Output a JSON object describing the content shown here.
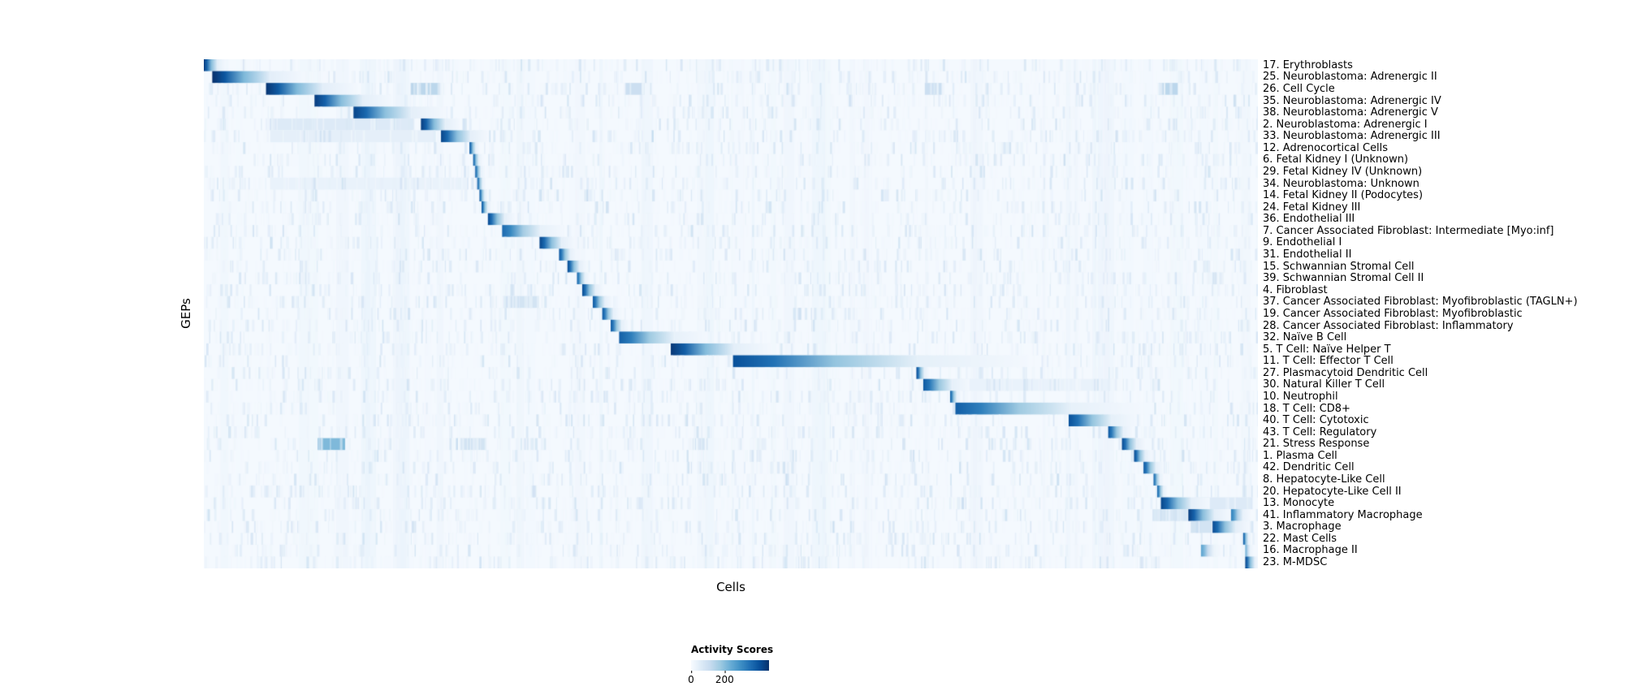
{
  "chart_data": {
    "type": "heatmap",
    "title": "",
    "xlabel": "Cells",
    "ylabel": "GEPs",
    "colormap": "Blues",
    "colormap_stops": [
      "#f7fbff",
      "#deebf7",
      "#c6dbef",
      "#9ecae1",
      "#6baed6",
      "#4292c6",
      "#2171b5",
      "#08519c",
      "#08306b"
    ],
    "colorbar": {
      "title": "Activity Scores",
      "ticks": [
        {
          "label": "0",
          "pos": 0.0
        },
        {
          "label": "200",
          "pos": 0.43
        }
      ]
    },
    "n_rows": 43,
    "block_format": "each block = [x_start_fraction_of_cells, x_end_fraction_of_cells, peak_intensity_0_to_1, optional 'flat' for uniform light band]; non-flat blocks fade from dark at start to light at end",
    "rows": [
      {
        "label": "17. Erythroblasts",
        "blocks": [
          [
            0.0,
            0.013,
            0.95
          ]
        ]
      },
      {
        "label": "25. Neuroblastoma: Adrenergic II",
        "blocks": [
          [
            0.008,
            0.063,
            1.0
          ]
        ]
      },
      {
        "label": "26. Cell Cycle",
        "blocks": [
          [
            0.059,
            0.113,
            0.98
          ],
          [
            0.196,
            0.224,
            0.28,
            "flat"
          ],
          [
            0.4,
            0.418,
            0.22,
            "flat"
          ],
          [
            0.684,
            0.7,
            0.22,
            "flat"
          ],
          [
            0.906,
            0.924,
            0.28,
            "flat"
          ]
        ]
      },
      {
        "label": "35. Neuroblastoma: Adrenergic IV",
        "blocks": [
          [
            0.105,
            0.151,
            0.95
          ]
        ]
      },
      {
        "label": "38. Neuroblastoma: Adrenergic V",
        "blocks": [
          [
            0.142,
            0.197,
            0.92
          ]
        ]
      },
      {
        "label": "2. Neuroblastoma: Adrenergic I",
        "blocks": [
          [
            0.206,
            0.229,
            0.95
          ],
          [
            0.063,
            0.2,
            0.13,
            "flat"
          ]
        ]
      },
      {
        "label": "33. Neuroblastoma: Adrenergic III",
        "blocks": [
          [
            0.225,
            0.253,
            0.92
          ],
          [
            0.063,
            0.22,
            0.09,
            "flat"
          ]
        ]
      },
      {
        "label": "12. Adrenocortical Cells",
        "blocks": [
          [
            0.252,
            0.258,
            0.85
          ]
        ]
      },
      {
        "label": "6. Fetal Kidney I (Unknown)",
        "blocks": [
          [
            0.2555,
            0.261,
            0.82
          ]
        ]
      },
      {
        "label": "29. Fetal Kidney IV (Unknown)",
        "blocks": [
          [
            0.2575,
            0.263,
            0.82
          ]
        ]
      },
      {
        "label": "34. Neuroblastoma: Unknown",
        "blocks": [
          [
            0.2595,
            0.2645,
            0.8
          ],
          [
            0.063,
            0.25,
            0.07,
            "flat"
          ]
        ]
      },
      {
        "label": "14. Fetal Kidney II (Podocytes)",
        "blocks": [
          [
            0.2615,
            0.2665,
            0.84
          ]
        ]
      },
      {
        "label": "24. Fetal Kidney III",
        "blocks": [
          [
            0.2635,
            0.2695,
            0.86
          ]
        ]
      },
      {
        "label": "36. Endothelial III",
        "blocks": [
          [
            0.2695,
            0.2855,
            0.9
          ]
        ]
      },
      {
        "label": "7. Cancer Associated Fibroblast: Intermediate [Myo:inf]",
        "blocks": [
          [
            0.283,
            0.3195,
            0.78
          ]
        ]
      },
      {
        "label": "9. Endothelial I",
        "blocks": [
          [
            0.3185,
            0.3395,
            0.92
          ]
        ]
      },
      {
        "label": "31. Endothelial II",
        "blocks": [
          [
            0.337,
            0.3475,
            0.85
          ]
        ]
      },
      {
        "label": "15. Schwannian Stromal Cell",
        "blocks": [
          [
            0.345,
            0.3565,
            0.9
          ]
        ]
      },
      {
        "label": "39. Schwannian Stromal Cell II",
        "blocks": [
          [
            0.354,
            0.3615,
            0.8
          ]
        ]
      },
      {
        "label": "4. Fibroblast",
        "blocks": [
          [
            0.359,
            0.3715,
            0.9
          ]
        ]
      },
      {
        "label": "37. Cancer Associated Fibroblast: Myofibroblastic (TAGLN+)",
        "blocks": [
          [
            0.369,
            0.3805,
            0.85
          ],
          [
            0.284,
            0.318,
            0.18,
            "flat"
          ]
        ]
      },
      {
        "label": "19. Cancer Associated Fibroblast: Myofibroblastic",
        "blocks": [
          [
            0.378,
            0.3885,
            0.85
          ]
        ]
      },
      {
        "label": "28. Cancer Associated Fibroblast: Inflammatory",
        "blocks": [
          [
            0.386,
            0.3965,
            0.85
          ]
        ]
      },
      {
        "label": "32. Naïve B Cell",
        "blocks": [
          [
            0.394,
            0.4465,
            0.82
          ]
        ]
      },
      {
        "label": "5. T Cell: Naïve Helper T",
        "blocks": [
          [
            0.443,
            0.503,
            0.97
          ]
        ]
      },
      {
        "label": "11. T Cell: Effector T Cell",
        "blocks": [
          [
            0.502,
            0.677,
            0.88
          ]
        ]
      },
      {
        "label": "27. Plasmacytoid Dendritic Cell",
        "blocks": [
          [
            0.676,
            0.6835,
            0.9
          ]
        ]
      },
      {
        "label": "30. Natural Killer T Cell",
        "blocks": [
          [
            0.6825,
            0.71,
            0.85
          ],
          [
            0.712,
            0.86,
            0.07,
            "flat"
          ]
        ]
      },
      {
        "label": "10. Neutrophil",
        "blocks": [
          [
            0.708,
            0.7145,
            0.82
          ]
        ]
      },
      {
        "label": "18. T Cell: CD8+",
        "blocks": [
          [
            0.713,
            0.823,
            0.82
          ]
        ]
      },
      {
        "label": "40. T Cell: Cytotoxic",
        "blocks": [
          [
            0.8205,
            0.861,
            0.88
          ]
        ]
      },
      {
        "label": "43. T Cell: Regulatory",
        "blocks": [
          [
            0.858,
            0.8725,
            0.85
          ]
        ]
      },
      {
        "label": "21. Stress Response",
        "blocks": [
          [
            0.871,
            0.885,
            0.9
          ],
          [
            0.108,
            0.134,
            0.45,
            "flat"
          ],
          [
            0.243,
            0.268,
            0.18,
            "flat"
          ]
        ]
      },
      {
        "label": "1. Plasma Cell",
        "blocks": [
          [
            0.8825,
            0.893,
            0.9
          ]
        ]
      },
      {
        "label": "42. Dendritic Cell",
        "blocks": [
          [
            0.8915,
            0.9035,
            0.85
          ]
        ]
      },
      {
        "label": "8. Hepatocyte-Like Cell",
        "blocks": [
          [
            0.901,
            0.907,
            0.8
          ]
        ]
      },
      {
        "label": "20. Hepatocyte-Like Cell II",
        "blocks": [
          [
            0.9045,
            0.9105,
            0.8
          ]
        ]
      },
      {
        "label": "13. Monocyte",
        "blocks": [
          [
            0.908,
            0.937,
            0.92
          ],
          [
            0.94,
            0.995,
            0.13,
            "flat"
          ]
        ]
      },
      {
        "label": "41. Inflammatory Macrophage",
        "blocks": [
          [
            0.934,
            0.959,
            0.95
          ],
          [
            0.9745,
            0.986,
            0.7
          ],
          [
            0.9,
            0.933,
            0.16,
            "flat"
          ]
        ]
      },
      {
        "label": "3. Macrophage",
        "blocks": [
          [
            0.957,
            0.979,
            0.9
          ],
          [
            0.936,
            0.956,
            0.18,
            "flat"
          ]
        ]
      },
      {
        "label": "22. Mast Cells",
        "blocks": [
          [
            0.986,
            0.991,
            0.85
          ]
        ]
      },
      {
        "label": "16. Macrophage II",
        "blocks": [
          [
            0.946,
            0.958,
            0.55
          ],
          [
            0.988,
            0.993,
            0.5
          ]
        ]
      },
      {
        "label": "23. M-MDSC",
        "blocks": [
          [
            0.988,
            0.997,
            0.92
          ]
        ]
      }
    ]
  }
}
